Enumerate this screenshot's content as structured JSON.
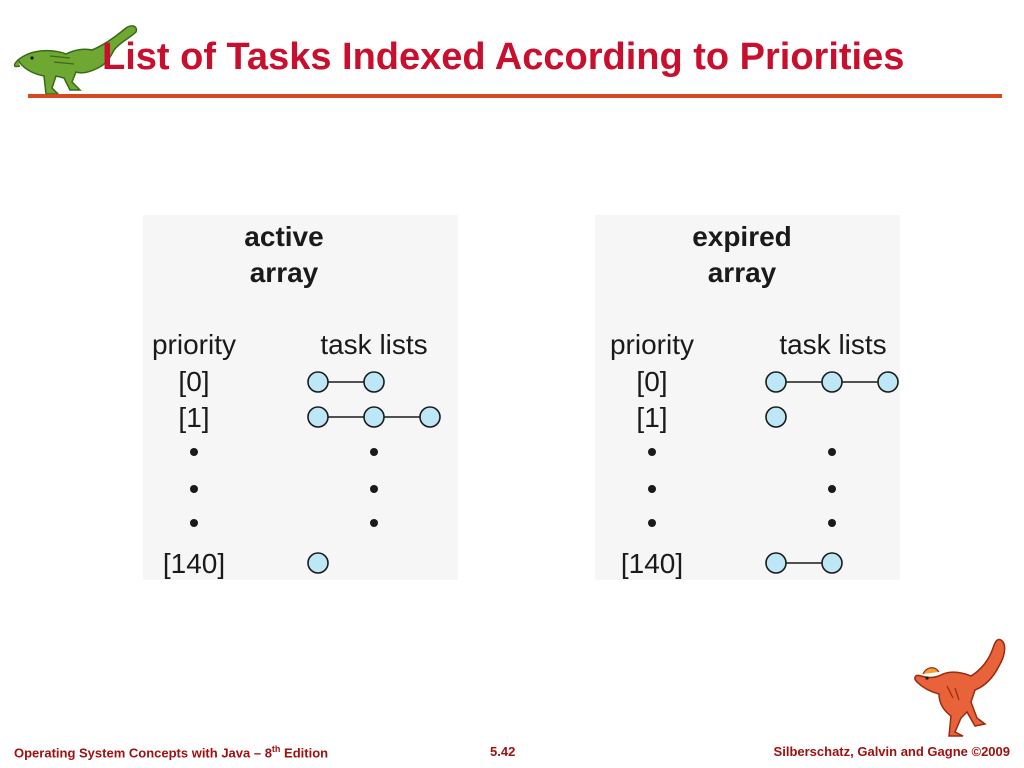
{
  "slide": {
    "title": "List of Tasks Indexed According to Priorities"
  },
  "footer": {
    "left_main": "Operating System Concepts with Java – 8",
    "left_sup": "th",
    "left_end": " Edition",
    "page_number": "5.42",
    "copyright": "Silberschatz, Galvin and Gagne ©2009"
  },
  "arrays": [
    {
      "heading_line1": "active",
      "heading_line2": "array",
      "col_priority": "priority",
      "col_tasks": "task lists",
      "rows": [
        {
          "label": "[0]",
          "tasks": 2
        },
        {
          "label": "[1]",
          "tasks": 3
        },
        {
          "label": "[140]",
          "tasks": 1
        }
      ]
    },
    {
      "heading_line1": "expired",
      "heading_line2": "array",
      "col_priority": "priority",
      "col_tasks": "task lists",
      "rows": [
        {
          "label": "[0]",
          "tasks": 3
        },
        {
          "label": "[1]",
          "tasks": 1
        },
        {
          "label": "[140]",
          "tasks": 2
        }
      ]
    }
  ],
  "colors": {
    "title": "#c8102e",
    "rule": "#d44a1e",
    "node_fill": "#bde6f7",
    "node_stroke": "#1a1a1a",
    "footer": "#a01010"
  },
  "icons": {
    "top_logo": "green-dinosaur-icon",
    "bottom_logo": "red-dinosaur-icon"
  }
}
